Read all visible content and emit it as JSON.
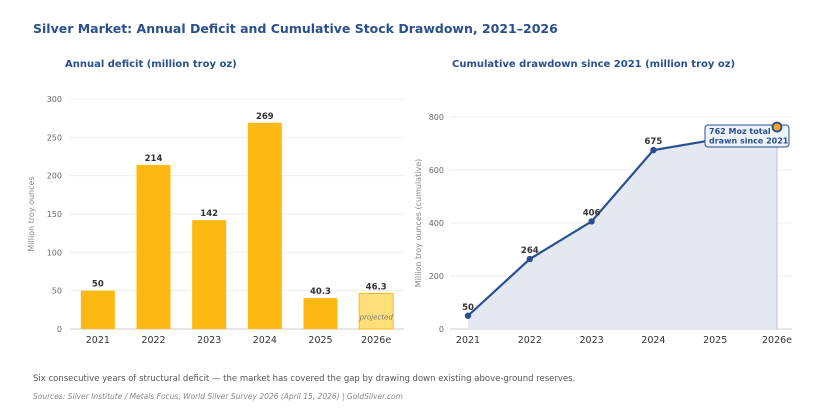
{
  "title": "Silver Market: Annual Deficit and Cumulative Stock Drawdown, 2021–2026",
  "footer": "Six consecutive years of structural deficit — the market has covered the gap by drawing down existing above-ground reserves.",
  "source": "Sources: Silver Institute / Metals Focus, World Silver Survey 2026 (April 15, 2026)  |  GoldSilver.com",
  "colors": {
    "bar": "#fdb913",
    "bar_projected": "#fedf7a",
    "line": "#2a4f8f",
    "area": "#e3e8f1",
    "highlight": "#f5a623"
  },
  "chart_data": [
    {
      "type": "bar",
      "title": "Annual deficit (million troy oz)",
      "ylabel": "Million troy ounces",
      "categories": [
        "2021",
        "2022",
        "2023",
        "2024",
        "2025",
        "2026e"
      ],
      "values": [
        50,
        214,
        142,
        269,
        40.3,
        46.3
      ],
      "value_labels": [
        "50",
        "214",
        "142",
        "269",
        "40.3",
        "46.3"
      ],
      "projected": [
        false,
        false,
        false,
        false,
        false,
        true
      ],
      "projected_label": "projected",
      "ylim": [
        0,
        300
      ],
      "yticks": [
        0,
        50,
        100,
        150,
        200,
        250,
        300
      ],
      "grid": true
    },
    {
      "type": "area",
      "title": "Cumulative drawdown since 2021 (million troy oz)",
      "ylabel": "Million troy ounces (cumulative)",
      "categories": [
        "2021",
        "2022",
        "2023",
        "2024",
        "2025",
        "2026e"
      ],
      "values": [
        50,
        264,
        406,
        675,
        715,
        762
      ],
      "value_labels": [
        "50",
        "264",
        "406",
        "675",
        "",
        ""
      ],
      "ylim": [
        0,
        800
      ],
      "yticks": [
        0,
        200,
        400,
        600,
        800
      ],
      "annotation": [
        "762 Moz total",
        "drawn since 2021"
      ],
      "grid": true
    }
  ]
}
